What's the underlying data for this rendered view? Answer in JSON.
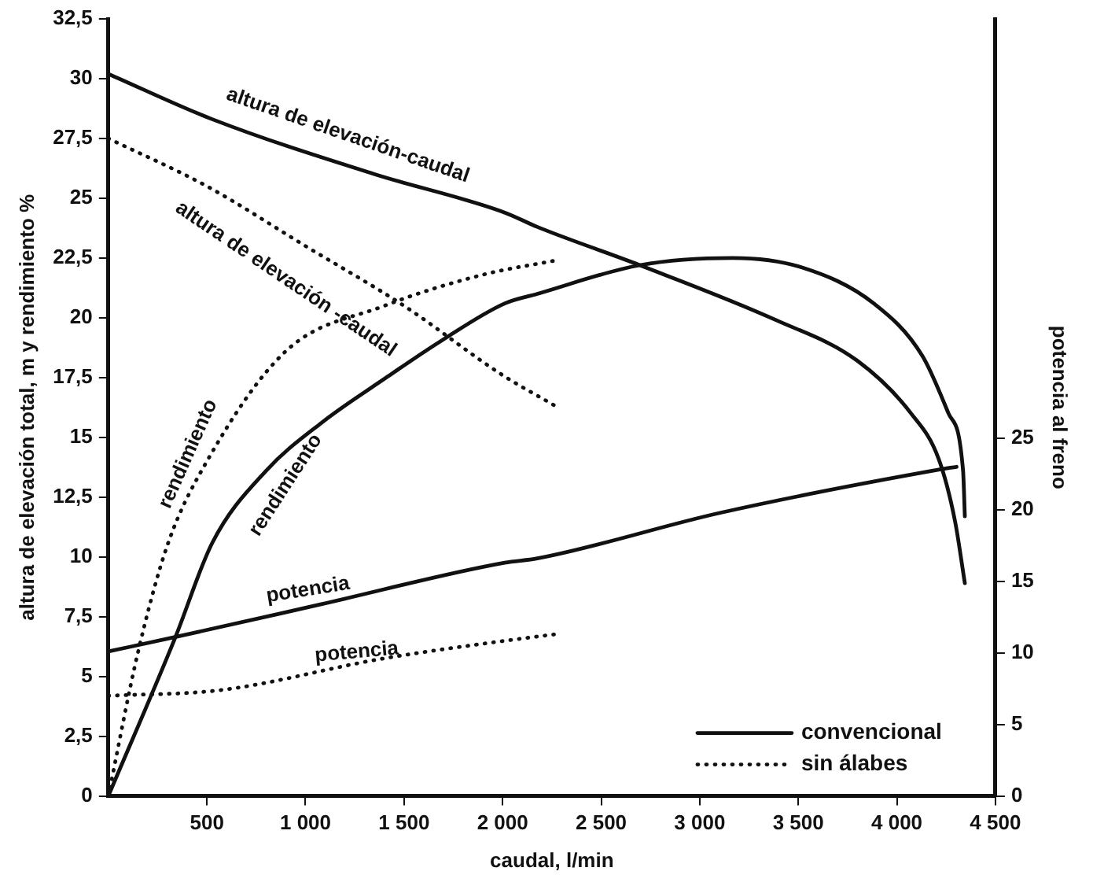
{
  "chart_data": {
    "type": "line",
    "xlabel": "caudal, l/min",
    "ylabel": "altura de elevación total, m y rendimiento %",
    "y2label": "potencia al freno",
    "xlim": [
      0,
      4500
    ],
    "xticks": [
      500,
      {
        "value": 1000,
        "label": "1 000"
      },
      {
        "value": 1500,
        "label": "1 500"
      },
      {
        "value": 2000,
        "label": "2 000"
      },
      {
        "value": 2500,
        "label": "2 500"
      },
      {
        "value": 3000,
        "label": "3 000"
      },
      {
        "value": 3500,
        "label": "3 500"
      },
      {
        "value": 4000,
        "label": "4 000"
      },
      {
        "value": 4500,
        "label": "4 500"
      }
    ],
    "ylim": [
      0,
      32.5
    ],
    "yticks": [
      0,
      {
        "value": 2.5,
        "label": "2,5"
      },
      5,
      {
        "value": 7.5,
        "label": "7,5"
      },
      10,
      {
        "value": 12.5,
        "label": "12,5"
      },
      15,
      {
        "value": 17.5,
        "label": "17,5"
      },
      20,
      {
        "value": 22.5,
        "label": "22,5"
      },
      25,
      {
        "value": 27.5,
        "label": "27,5"
      },
      30,
      {
        "value": 32.5,
        "label": "32,5"
      }
    ],
    "y2lim": [
      0,
      54.3
    ],
    "y2ticks": [
      0,
      5,
      10,
      15,
      20,
      25
    ],
    "grid": false,
    "legend": "bottom right",
    "marker": "none",
    "series": [
      {
        "name": "convencional",
        "color": "#111111",
        "line_style": "solid",
        "x": [
          0,
          528,
          1352,
          2011,
          2176,
          2696,
          3388,
          3800,
          4072,
          4212,
          4295,
          4345
        ],
        "values": [
          30.2,
          28.3,
          26.0,
          24.4,
          23.8,
          22.2,
          19.9,
          18.2,
          16.0,
          14.1,
          11.5,
          8.9
        ]
      },
      {
        "color": "#111111",
        "line_style": "solid",
        "x": [
          0,
          338,
          528,
          800,
          1080,
          1410,
          1682,
          2011,
          2176,
          2696,
          3166,
          3520,
          3883,
          4130,
          4262,
          4336,
          4345
        ],
        "values": [
          0,
          6.6,
          10.6,
          13.6,
          15.6,
          17.5,
          19.0,
          20.6,
          21.0,
          22.2,
          22.5,
          22.1,
          20.6,
          18.4,
          16.0,
          13.6,
          11.7
        ]
      },
      {
        "color": "#111111",
        "line_style": "solid",
        "axis": "y2",
        "x": [
          0,
          338,
          1080,
          2011,
          2176,
          3108,
          4212,
          4303
        ],
        "values": [
          10.1,
          11.1,
          13.4,
          16.3,
          16.6,
          19.8,
          22.8,
          23.0
        ]
      },
      {
        "name": "sin álabes",
        "color": "#111111",
        "line_style": "dotted",
        "x": [
          0,
          500,
          1000,
          1500,
          2000,
          2270
        ],
        "values": [
          27.5,
          25.5,
          23.0,
          20.5,
          17.6,
          16.3
        ]
      },
      {
        "color": "#111111",
        "line_style": "dotted",
        "x": [
          0,
          150,
          300,
          500,
          900,
          1400,
          1900,
          2270
        ],
        "values": [
          0,
          6,
          10.5,
          14,
          18.6,
          20.5,
          21.8,
          22.4
        ]
      },
      {
        "color": "#111111",
        "line_style": "dotted",
        "axis": "y2",
        "x": [
          0,
          570,
          1393,
          2152,
          2270
        ],
        "values": [
          7,
          7.4,
          9.6,
          11.1,
          11.3
        ]
      }
    ],
    "annotations": [
      "altura de elevación-caudal",
      "altura de elevación -caudal",
      "rendimiento",
      "rendimiento",
      "potencia",
      "potencia"
    ]
  }
}
